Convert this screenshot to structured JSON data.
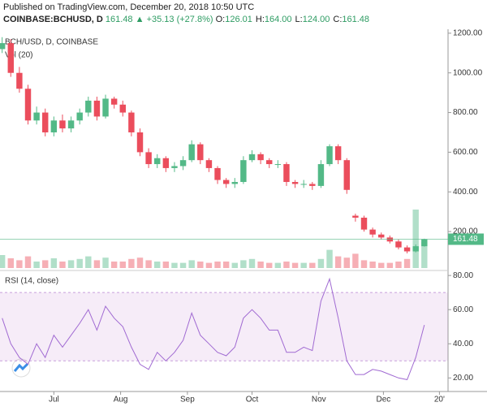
{
  "header": {
    "published": "Published on TradingView.com, December 20, 2018 10:50 UTC",
    "symbol": "COINBASE:BCHUSD, D",
    "last": "161.48",
    "arrow": "▲",
    "change": "+35.13 (+27.8%)",
    "ohlc": [
      {
        "label": "O:",
        "value": "126.01"
      },
      {
        "label": "H:",
        "value": "164.00"
      },
      {
        "label": "L:",
        "value": "124.00"
      },
      {
        "label": "C:",
        "value": "161.48"
      }
    ]
  },
  "chart_data": {
    "type": "candlestick",
    "title": "BCH/USD, D, COINBASE",
    "volume_title": "Vol (20)",
    "up_color": "#53b987",
    "down_color": "#eb4d5c",
    "xlim": [
      0,
      208
    ],
    "xticks": [
      {
        "value": 25,
        "label": "Jul"
      },
      {
        "value": 56,
        "label": "Aug"
      },
      {
        "value": 87,
        "label": "Sep"
      },
      {
        "value": 117,
        "label": "Oct"
      },
      {
        "value": 148,
        "label": "Nov"
      },
      {
        "value": 178,
        "label": "Dec"
      },
      {
        "value": 204,
        "label": "20'"
      }
    ],
    "ylim": [
      16,
      1220
    ],
    "yticks": [
      {
        "value": 200,
        "label": "200.00"
      },
      {
        "value": 400,
        "label": "400.00"
      },
      {
        "value": 600,
        "label": "600.00"
      },
      {
        "value": 800,
        "label": "800.00"
      },
      {
        "value": 1000,
        "label": "1000.00"
      },
      {
        "value": 1200,
        "label": "1200.00"
      }
    ],
    "candles": [
      [
        1,
        1120,
        1180,
        1100,
        1150
      ],
      [
        5,
        1150,
        1170,
        980,
        1000
      ],
      [
        9,
        1000,
        1030,
        900,
        920
      ],
      [
        13,
        920,
        940,
        740,
        760
      ],
      [
        17,
        760,
        830,
        740,
        800
      ],
      [
        21,
        800,
        820,
        680,
        700
      ],
      [
        25,
        700,
        780,
        680,
        760
      ],
      [
        29,
        760,
        790,
        700,
        720
      ],
      [
        33,
        720,
        780,
        700,
        760
      ],
      [
        37,
        760,
        820,
        740,
        800
      ],
      [
        41,
        800,
        880,
        780,
        860
      ],
      [
        45,
        860,
        880,
        760,
        780
      ],
      [
        49,
        780,
        890,
        770,
        870
      ],
      [
        53,
        870,
        880,
        820,
        840
      ],
      [
        57,
        840,
        860,
        780,
        800
      ],
      [
        61,
        800,
        810,
        680,
        700
      ],
      [
        65,
        700,
        720,
        580,
        600
      ],
      [
        69,
        600,
        620,
        520,
        540
      ],
      [
        73,
        540,
        590,
        520,
        570
      ],
      [
        77,
        570,
        580,
        500,
        520
      ],
      [
        81,
        520,
        550,
        500,
        530
      ],
      [
        85,
        530,
        580,
        510,
        560
      ],
      [
        89,
        560,
        660,
        550,
        640
      ],
      [
        93,
        640,
        650,
        540,
        560
      ],
      [
        97,
        560,
        570,
        500,
        520
      ],
      [
        101,
        520,
        530,
        440,
        460
      ],
      [
        105,
        460,
        470,
        420,
        440
      ],
      [
        109,
        440,
        470,
        420,
        450
      ],
      [
        113,
        450,
        580,
        440,
        560
      ],
      [
        117,
        560,
        610,
        550,
        590
      ],
      [
        121,
        590,
        600,
        540,
        560
      ],
      [
        125,
        560,
        570,
        520,
        540
      ],
      [
        129,
        540,
        560,
        520,
        540
      ],
      [
        133,
        540,
        550,
        430,
        450
      ],
      [
        137,
        450,
        460,
        420,
        440
      ],
      [
        141,
        440,
        460,
        420,
        440
      ],
      [
        145,
        440,
        450,
        410,
        430
      ],
      [
        149,
        430,
        560,
        420,
        540
      ],
      [
        153,
        540,
        640,
        530,
        630
      ],
      [
        157,
        630,
        640,
        540,
        560
      ],
      [
        161,
        560,
        570,
        390,
        410
      ],
      [
        165,
        280,
        290,
        250,
        270
      ],
      [
        169,
        270,
        280,
        200,
        210
      ],
      [
        173,
        210,
        220,
        170,
        185
      ],
      [
        177,
        185,
        195,
        160,
        170
      ],
      [
        181,
        170,
        180,
        140,
        150
      ],
      [
        185,
        150,
        160,
        110,
        120
      ],
      [
        189,
        120,
        130,
        90,
        100
      ],
      [
        193,
        100,
        135,
        95,
        126
      ],
      [
        197,
        126.01,
        164,
        124,
        161.48
      ]
    ],
    "vlim": [
      0,
      100
    ],
    "volume": [
      20,
      15,
      12,
      18,
      10,
      12,
      15,
      10,
      12,
      14,
      18,
      12,
      16,
      10,
      10,
      14,
      16,
      12,
      10,
      10,
      8,
      8,
      12,
      10,
      8,
      10,
      10,
      8,
      12,
      14,
      10,
      8,
      8,
      10,
      8,
      8,
      8,
      14,
      28,
      18,
      16,
      22,
      12,
      10,
      8,
      8,
      10,
      14,
      90,
      40
    ],
    "rsi": {
      "name": "RSI (14, close)",
      "color": "#a06ad2",
      "values": [
        55,
        40,
        32,
        28,
        40,
        32,
        45,
        38,
        45,
        52,
        60,
        48,
        62,
        55,
        50,
        38,
        28,
        25,
        35,
        30,
        35,
        42,
        58,
        45,
        40,
        35,
        33,
        38,
        55,
        60,
        55,
        48,
        48,
        35,
        35,
        38,
        36,
        65,
        78,
        55,
        30,
        22,
        22,
        25,
        24,
        22,
        20,
        19,
        32,
        51
      ]
    },
    "rsi_lim": [
      13,
      81.5
    ],
    "rsi_band": [
      30,
      70
    ],
    "rsi_ticks": [
      {
        "value": 20,
        "label": "20.00"
      },
      {
        "value": 40,
        "label": "40.00"
      },
      {
        "value": 60,
        "label": "60.00"
      },
      {
        "value": 80,
        "label": "80.00"
      }
    ]
  }
}
